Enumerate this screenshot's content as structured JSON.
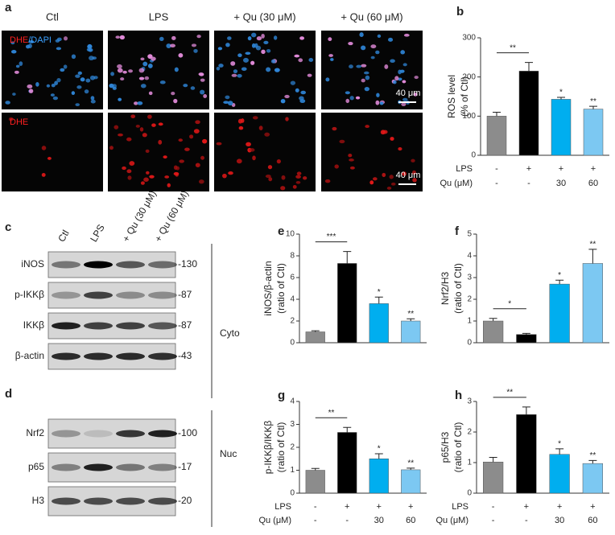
{
  "microscopy": {
    "label": "a",
    "columns": [
      "Ctl",
      "LPS",
      "+ Qu (30 μM)",
      "+ Qu (60 μM)"
    ],
    "rows": [
      {
        "stain": [
          "DHE",
          "/DAPI"
        ]
      },
      {
        "stain": [
          "DHE"
        ]
      }
    ],
    "scale_bar": "40 μm"
  },
  "western": {
    "lanes": [
      "Ctl",
      "LPS",
      "+ Qu (30 μM)",
      "+ Qu (60 μM)"
    ],
    "groups": [
      {
        "label": "c",
        "name": "Cyto",
        "rows": [
          {
            "protein": "iNOS",
            "kda": "-130"
          },
          {
            "protein": "p-IKKβ",
            "kda": "-87"
          },
          {
            "protein": "IKKβ",
            "kda": "-87"
          },
          {
            "protein": "β-actin",
            "kda": "-43"
          }
        ]
      },
      {
        "label": "d",
        "name": "Nuc",
        "rows": [
          {
            "protein": "Nrf2",
            "kda": "-100"
          },
          {
            "protein": "p65",
            "kda": "-17"
          },
          {
            "protein": "H3",
            "kda": "-20"
          }
        ]
      }
    ]
  },
  "chart_data": [
    {
      "type": "bar",
      "label": "b",
      "ylabel": [
        "ROS level",
        "(% of Ctl)"
      ],
      "values": [
        100,
        215,
        143,
        118
      ],
      "errors": [
        10,
        22,
        5,
        7
      ],
      "colors": [
        "#8c8c8c",
        "#000000",
        "#00aeef",
        "#7cc8f2"
      ],
      "ylim": [
        0,
        300
      ],
      "yticks": [
        0,
        100,
        200,
        300
      ],
      "bracket_label": "**",
      "bar_labels": [
        null,
        null,
        "*",
        "**"
      ],
      "conditions": [
        {
          "name": "LPS",
          "values": [
            "-",
            "+",
            "+",
            "+"
          ]
        },
        {
          "name": "Qu (μM)",
          "values": [
            "-",
            "-",
            "30",
            "60"
          ]
        }
      ]
    },
    {
      "type": "bar",
      "label": "e",
      "ylabel": [
        "iNOS/β-actin",
        "(ratio of Ctl)"
      ],
      "values": [
        1.0,
        7.3,
        3.6,
        2.0
      ],
      "errors": [
        0.1,
        1.1,
        0.6,
        0.2
      ],
      "colors": [
        "#8c8c8c",
        "#000000",
        "#00aeef",
        "#7cc8f2"
      ],
      "ylim": [
        0,
        10
      ],
      "yticks": [
        0,
        2,
        4,
        6,
        8,
        10
      ],
      "bracket_label": "***",
      "bar_labels": [
        null,
        null,
        "*",
        "**"
      ]
    },
    {
      "type": "bar",
      "label": "f",
      "ylabel": [
        "Nrf2/H3",
        "(ratio of Ctl)"
      ],
      "values": [
        1.0,
        0.38,
        2.7,
        3.65
      ],
      "errors": [
        0.12,
        0.05,
        0.18,
        0.65
      ],
      "colors": [
        "#8c8c8c",
        "#000000",
        "#00aeef",
        "#7cc8f2"
      ],
      "ylim": [
        0,
        5
      ],
      "yticks": [
        0,
        1,
        2,
        3,
        4,
        5
      ],
      "bracket_label": "*",
      "bar_labels": [
        null,
        null,
        "*",
        "**"
      ]
    },
    {
      "type": "bar",
      "label": "g",
      "ylabel": [
        "p-IKKβ/IKKβ",
        "(ratio of Ctl)"
      ],
      "values": [
        1.0,
        2.65,
        1.5,
        1.02
      ],
      "errors": [
        0.08,
        0.22,
        0.22,
        0.07
      ],
      "colors": [
        "#8c8c8c",
        "#000000",
        "#00aeef",
        "#7cc8f2"
      ],
      "ylim": [
        0,
        4
      ],
      "yticks": [
        0,
        1,
        2,
        3,
        4
      ],
      "bracket_label": "**",
      "bar_labels": [
        null,
        null,
        "*",
        "**"
      ],
      "conditions": [
        {
          "name": "LPS",
          "values": [
            "-",
            "+",
            "+",
            "+"
          ]
        },
        {
          "name": "Qu (μM)",
          "values": [
            "-",
            "-",
            "30",
            "60"
          ]
        }
      ]
    },
    {
      "type": "bar",
      "label": "h",
      "ylabel": [
        "p65/H3",
        "(ratio of Ctl)"
      ],
      "values": [
        1.02,
        2.57,
        1.27,
        0.97
      ],
      "errors": [
        0.15,
        0.25,
        0.18,
        0.1
      ],
      "colors": [
        "#8c8c8c",
        "#000000",
        "#00aeef",
        "#7cc8f2"
      ],
      "ylim": [
        0,
        3
      ],
      "yticks": [
        0,
        1,
        2,
        3
      ],
      "bracket_label": "**",
      "bar_labels": [
        null,
        null,
        "*",
        "**"
      ],
      "conditions": [
        {
          "name": "LPS",
          "values": [
            "-",
            "+",
            "+",
            "+"
          ]
        },
        {
          "name": "Qu (μM)",
          "values": [
            "-",
            "-",
            "30",
            "60"
          ]
        }
      ]
    }
  ]
}
